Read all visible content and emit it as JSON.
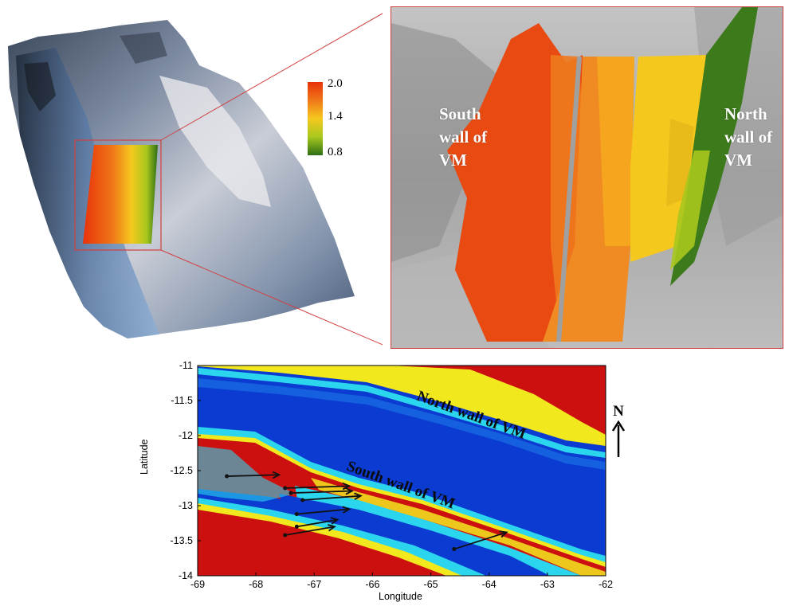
{
  "colorbar": {
    "ticks": [
      "2.0",
      "1.4",
      "0.8"
    ],
    "colors": [
      "#e8320a",
      "#f07818",
      "#f5c81e",
      "#a8c81e",
      "#2d6e14"
    ]
  },
  "zoom": {
    "south_label": "South\nwall of\nVM",
    "north_label": "North\nwall of\nVM",
    "frame_color": "#d04040"
  },
  "map": {
    "xlabel": "Longitude",
    "ylabel": "Latitude",
    "xticks": [
      "-69",
      "-68",
      "-67",
      "-66",
      "-65",
      "-64",
      "-63",
      "-62"
    ],
    "yticks": [
      "-11",
      "-11.5",
      "-12",
      "-12.5",
      "-13",
      "-13.5",
      "-14"
    ],
    "xlim": [
      -69,
      -62
    ],
    "ylim": [
      -14,
      -11
    ],
    "north_wall_label": "North wall of VM",
    "south_wall_label": "South wall of VM",
    "north_arrow_label": "N"
  },
  "chart_data": {
    "type": "heatmap",
    "xlabel": "Longitude",
    "ylabel": "Latitude",
    "xlim": [
      -69,
      -62
    ],
    "ylim": [
      -14,
      -11
    ],
    "annotations": [
      "North wall of VM",
      "South wall of VM",
      "N"
    ],
    "vectors": [
      {
        "from": [
          -68.5,
          -12.58
        ],
        "to": [
          -67.6,
          -12.56
        ]
      },
      {
        "from": [
          -67.5,
          -12.75
        ],
        "to": [
          -66.4,
          -12.72
        ]
      },
      {
        "from": [
          -67.4,
          -12.82
        ],
        "to": [
          -66.35,
          -12.79
        ]
      },
      {
        "from": [
          -67.2,
          -12.92
        ],
        "to": [
          -66.2,
          -12.86
        ]
      },
      {
        "from": [
          -67.3,
          -13.12
        ],
        "to": [
          -66.4,
          -13.05
        ]
      },
      {
        "from": [
          -67.3,
          -13.3
        ],
        "to": [
          -66.6,
          -13.2
        ]
      },
      {
        "from": [
          -67.5,
          -13.42
        ],
        "to": [
          -66.65,
          -13.3
        ]
      },
      {
        "from": [
          -64.6,
          -13.62
        ],
        "to": [
          -63.7,
          -13.38
        ]
      }
    ]
  }
}
